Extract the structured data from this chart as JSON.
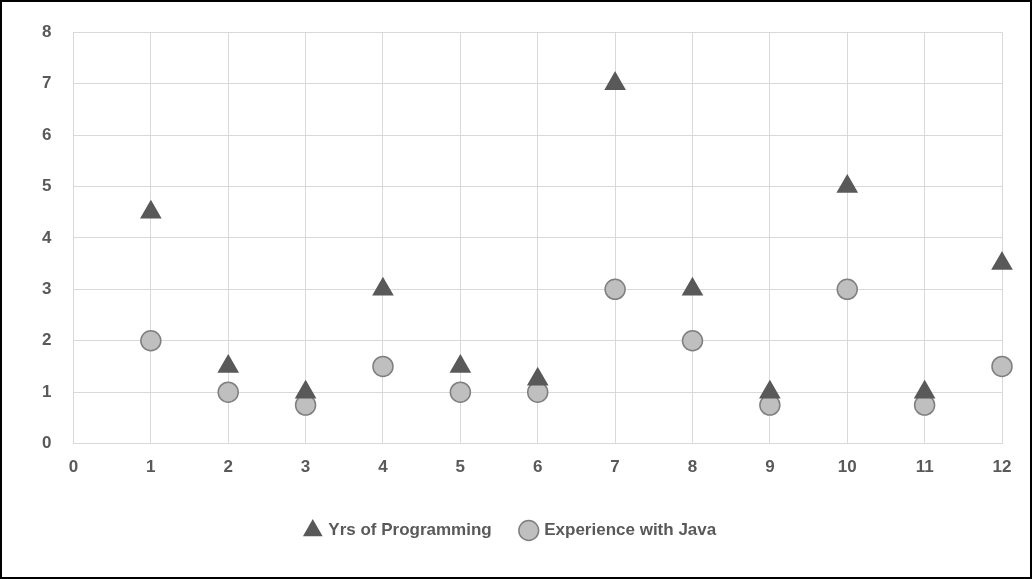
{
  "chart_data": {
    "type": "scatter",
    "x": [
      1,
      2,
      3,
      4,
      5,
      6,
      7,
      8,
      9,
      10,
      11,
      12
    ],
    "series": [
      {
        "name": "Yrs of Programming",
        "color": "#595959",
        "marker": "triangle",
        "values": [
          4.5,
          1.5,
          1,
          3,
          1.5,
          1.25,
          7,
          3,
          1,
          5,
          1,
          3.5
        ]
      },
      {
        "name": "Experience with Java",
        "color": "#bfbfbf",
        "marker": "circle",
        "values": [
          2,
          1,
          0.75,
          1.5,
          1,
          1,
          3,
          2,
          0.75,
          3,
          0.75,
          1.5
        ]
      }
    ],
    "xlim": [
      0,
      12
    ],
    "xticks": [
      0,
      1,
      2,
      3,
      4,
      5,
      6,
      7,
      8,
      9,
      10,
      11,
      12
    ],
    "ylim": [
      0,
      8
    ],
    "yticks": [
      0,
      1,
      2,
      3,
      4,
      5,
      6,
      7,
      8
    ],
    "grid": true,
    "legend": "bottom"
  }
}
